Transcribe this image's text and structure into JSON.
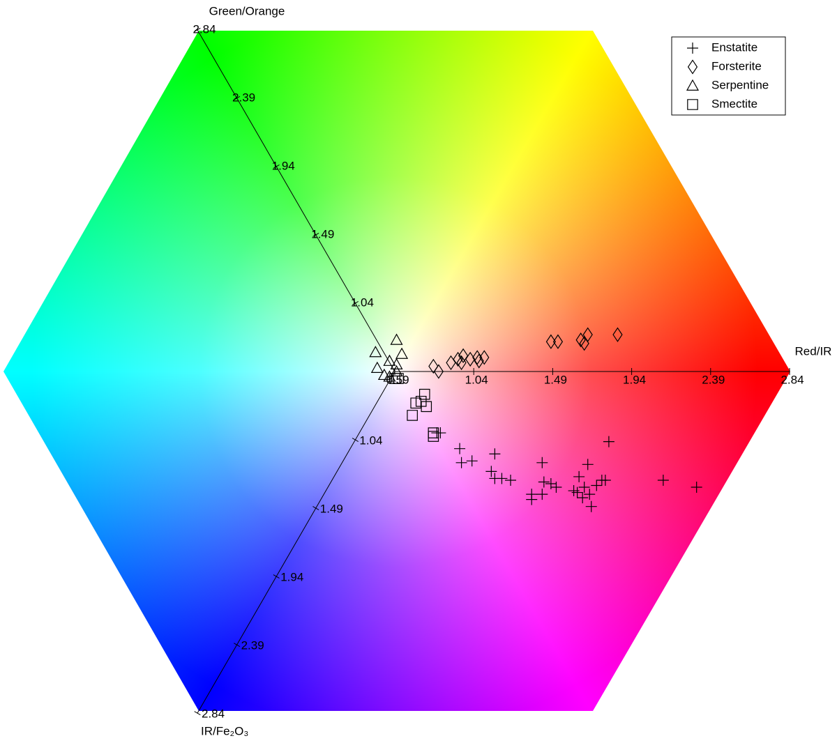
{
  "chart_data": {
    "type": "scatter",
    "range": [
      0.59,
      2.84
    ],
    "axes": [
      {
        "name": "Red/IR",
        "ticks": [
          0.59,
          1.04,
          1.49,
          1.94,
          2.39,
          2.84
        ]
      },
      {
        "name": "Green/Orange",
        "ticks": [
          1.04,
          1.49,
          1.94,
          2.39,
          2.84
        ]
      },
      {
        "name": "IR/Fe₂O₃",
        "ticks": [
          1.04,
          1.49,
          1.94,
          2.39,
          2.84
        ]
      }
    ],
    "legend": "upper right",
    "series": [
      {
        "name": "Enstatite",
        "marker": "cross",
        "x": [
          1.81,
          1.69,
          1.43,
          1.16,
          0.96,
          0.97,
          1.03,
          1.14,
          1.16,
          1.2,
          1.25,
          1.44,
          1.48,
          1.51,
          1.64,
          1.67,
          1.77,
          1.79,
          2.12,
          2.31,
          1.37,
          1.37,
          1.43,
          1.61,
          1.63,
          1.66,
          1.7,
          1.71,
          1.74,
          0.83,
          0.85
        ],
        "values": [
          -0.4,
          -0.53,
          -0.52,
          -0.47,
          -0.44,
          -0.52,
          -0.51,
          -0.57,
          -0.61,
          -0.61,
          -0.62,
          -0.63,
          -0.64,
          -0.66,
          -0.6,
          -0.66,
          -0.62,
          -0.62,
          -0.62,
          -0.66,
          -0.7,
          -0.73,
          -0.7,
          -0.68,
          -0.69,
          -0.72,
          -0.7,
          -0.77,
          -0.65,
          -0.35,
          -0.35
        ]
      },
      {
        "name": "Forsterite",
        "marker": "diamond",
        "x": [
          1.86,
          1.69,
          1.65,
          1.67,
          1.52,
          1.48,
          1.1,
          1.06,
          1.02,
          0.98,
          0.95,
          0.91,
          0.84,
          0.81,
          0.97,
          1.07
        ],
        "values": [
          0.21,
          0.21,
          0.18,
          0.16,
          0.17,
          0.17,
          0.08,
          0.08,
          0.07,
          0.09,
          0.07,
          0.05,
          0.0,
          0.03,
          0.05,
          0.06
        ]
      },
      {
        "name": "Serpentine",
        "marker": "triangle",
        "x": [
          0.6,
          0.48,
          0.63,
          0.56,
          0.49,
          0.6,
          0.53,
          0.56,
          0.6
        ],
        "values": [
          0.18,
          0.11,
          0.1,
          0.06,
          0.02,
          0.04,
          -0.02,
          -0.03,
          0.0
        ]
      },
      {
        "name": "Smectite",
        "marker": "square",
        "x": [
          0.61,
          0.59,
          0.76,
          0.71,
          0.77,
          0.74,
          0.69,
          0.81,
          0.81
        ],
        "values": [
          -0.04,
          -0.04,
          -0.13,
          -0.18,
          -0.2,
          -0.17,
          -0.25,
          -0.37,
          -0.35
        ]
      }
    ]
  }
}
